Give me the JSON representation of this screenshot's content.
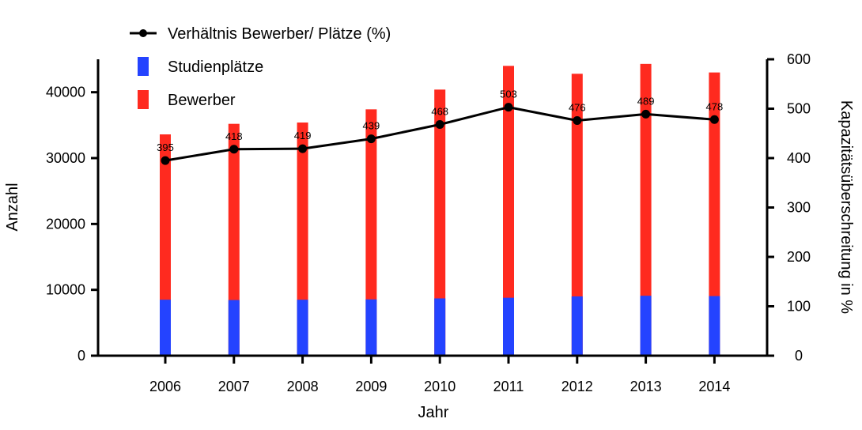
{
  "chart_data": {
    "type": "bar",
    "categories": [
      "2006",
      "2007",
      "2008",
      "2009",
      "2010",
      "2011",
      "2012",
      "2013",
      "2014"
    ],
    "series": [
      {
        "name": "Studienplätze",
        "kind": "bar",
        "axis": "left",
        "color": "#2443ff",
        "values": [
          8500,
          8450,
          8500,
          8550,
          8700,
          8800,
          9000,
          9100,
          9050
        ]
      },
      {
        "name": "Bewerber",
        "kind": "bar",
        "axis": "left",
        "color": "#ff2a1f",
        "values": [
          33600,
          35200,
          35400,
          37400,
          40400,
          44000,
          42800,
          44300,
          43000
        ]
      },
      {
        "name": "Verhältnis Bewerber/ Plätze (%)",
        "kind": "line",
        "axis": "right",
        "color": "#000000",
        "values": [
          395,
          418,
          419,
          439,
          468,
          503,
          476,
          489,
          478
        ],
        "labels": [
          "395",
          "418",
          "419",
          "439",
          "468",
          "503",
          "476",
          "489",
          "478"
        ]
      }
    ],
    "xlabel": "Jahr",
    "ylabel": "Anzahl",
    "y2label": "Kapazitätsüberschreitung in %",
    "ylim": [
      0,
      45000
    ],
    "y2lim": [
      0,
      600
    ],
    "yticks": [
      "0",
      "10000",
      "20000",
      "30000",
      "40000"
    ],
    "y2ticks": [
      "0",
      "100",
      "200",
      "300",
      "400",
      "500",
      "600"
    ],
    "grid": false,
    "legend_position": "top-left",
    "bar_mode": "overlay"
  }
}
